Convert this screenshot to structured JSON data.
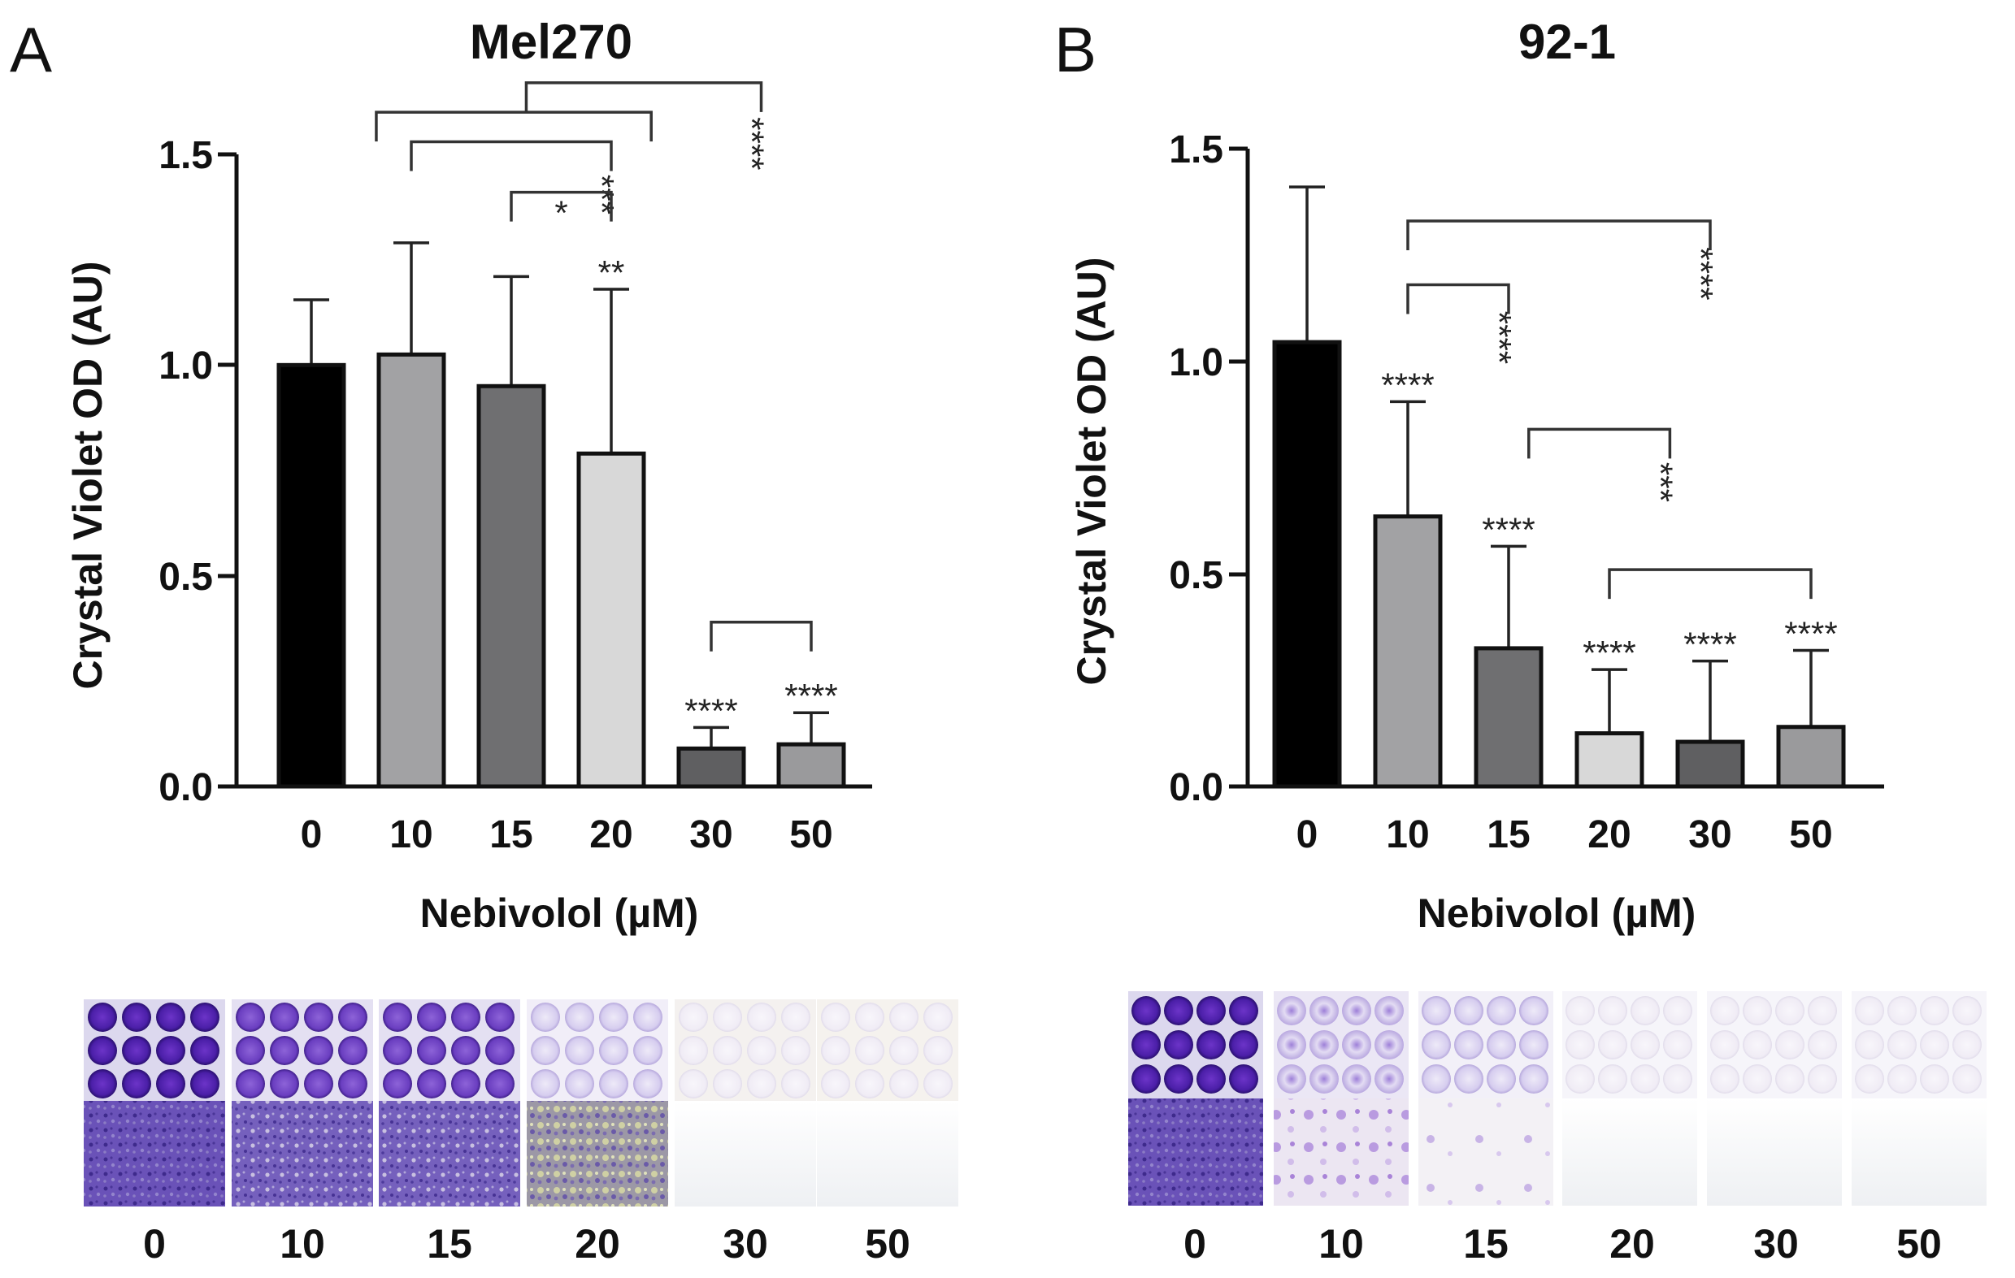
{
  "chart_data": [
    {
      "panel": "A",
      "type": "bar",
      "title": "Mel270",
      "xlabel": "Nebivolol (µM)",
      "ylabel": "Crystal Violet OD (AU)",
      "ylim": [
        0,
        1.5
      ],
      "yticks": [
        "0.0",
        "0.5",
        "1.0",
        "1.5"
      ],
      "categories": [
        "0",
        "10",
        "15",
        "20",
        "30",
        "50"
      ],
      "values": [
        1.0,
        1.025,
        0.95,
        0.79,
        0.09,
        0.1
      ],
      "errors": [
        0.155,
        0.265,
        0.26,
        0.39,
        0.05,
        0.075
      ],
      "colors": [
        "#000000",
        "#a2a2a4",
        "#6f6f71",
        "#d8d8d8",
        "#5f5f61",
        "#9a9a9c"
      ],
      "bar_annotations": [
        "",
        "",
        "",
        "**",
        "****",
        "****"
      ],
      "comparisons": [
        {
          "from": 1,
          "to": 3,
          "label": "***",
          "y": 1.53,
          "label_side": "left",
          "label_rotated": true
        },
        {
          "from": 2,
          "to": 3,
          "label": "*",
          "y": 1.41,
          "label_side": "top",
          "label_rotated": false
        },
        {
          "from": 0.65,
          "to": 3.4,
          "label": "",
          "y": 1.6,
          "label_side": "",
          "label_rotated": false
        },
        {
          "from": 4,
          "to": 5,
          "label": "",
          "y": 0.39,
          "label_side": "",
          "label_rotated": false
        },
        {
          "from": 2.15,
          "to": 4.5,
          "label": "****",
          "y": 1.67,
          "label_side": "right",
          "label_rotated": true
        }
      ],
      "image_labels": [
        "0",
        "10",
        "15",
        "20",
        "30",
        "50"
      ]
    },
    {
      "panel": "B",
      "type": "bar",
      "title": "92-1",
      "xlabel": "Nebivolol (µM)",
      "ylabel": "Crystal Violet OD (AU)",
      "ylim": [
        0,
        1.5
      ],
      "yticks": [
        "0.0",
        "0.5",
        "1.0",
        "1.5"
      ],
      "categories": [
        "0",
        "10",
        "15",
        "20",
        "30",
        "50"
      ],
      "values": [
        1.045,
        0.635,
        0.325,
        0.125,
        0.105,
        0.14
      ],
      "errors": [
        0.365,
        0.27,
        0.24,
        0.15,
        0.19,
        0.18
      ],
      "colors": [
        "#000000",
        "#a2a2a4",
        "#6f6f71",
        "#d8d8d8",
        "#5f5f61",
        "#9a9a9c"
      ],
      "bar_annotations": [
        "",
        "****",
        "****",
        "****",
        "****",
        "****"
      ],
      "comparisons": [
        {
          "from": 1,
          "to": 2,
          "label": "****",
          "y": 1.18,
          "label_side": "left",
          "label_rotated": true
        },
        {
          "from": 2.2,
          "to": 3.6,
          "label": "***",
          "y": 0.84,
          "label_side": "left",
          "label_rotated": true
        },
        {
          "from": 3,
          "to": 5,
          "label": "",
          "y": 0.51,
          "label_side": "",
          "label_rotated": false
        },
        {
          "from": 1,
          "to": 4,
          "label": "****",
          "y": 1.33,
          "label_side": "left",
          "label_rotated": true
        }
      ],
      "image_labels": [
        "0",
        "10",
        "15",
        "20",
        "30",
        "50"
      ]
    }
  ]
}
